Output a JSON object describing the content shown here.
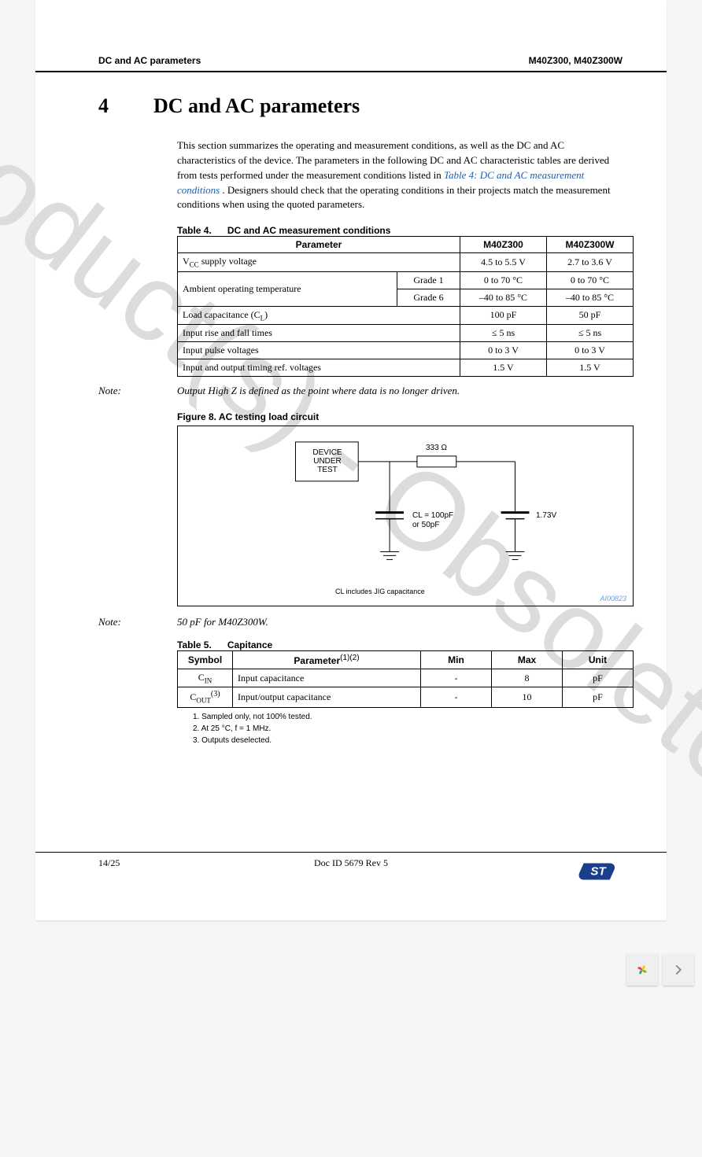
{
  "watermark": "Obsolete Product(s) - Obsolete Product(s)",
  "header": {
    "left": "DC and AC parameters",
    "right": "M40Z300, M40Z300W"
  },
  "section": {
    "number": "4",
    "title": "DC and AC parameters"
  },
  "intro": {
    "p1a": "This section summarizes the operating and measurement conditions, as well as the DC and AC characteristics of the device. The parameters in the following DC and AC characteristic tables are derived from tests performed under the measurement conditions listed in ",
    "link1": "Table 4: DC and AC measurement conditions",
    "p1b": ". Designers should check that the operating conditions in their projects match the measurement conditions when using the quoted parameters."
  },
  "table4": {
    "caption_label": "Table 4.",
    "caption_title": "DC and AC measurement conditions",
    "head": {
      "param": "Parameter",
      "c1": "M40Z300",
      "c2": "M40Z300W"
    },
    "rows": [
      {
        "param_html": "V<sub>CC</sub>  supply voltage",
        "c1": "4.5 to 5.5 V",
        "c2": "2.7 to 3.6 V"
      },
      {
        "param": "Ambient operating temperature",
        "grades": [
          {
            "g": "Grade 1",
            "c1": "0 to 70 °C",
            "c2": "0 to 70 °C"
          },
          {
            "g": "Grade 6",
            "c1": "–40 to 85 °C",
            "c2": "–40 to 85 °C"
          }
        ]
      },
      {
        "param_html": "Load capacitance (C<sub>L</sub>)",
        "c1": "100 pF",
        "c2": "50 pF"
      },
      {
        "param": "Input rise and fall times",
        "c1": "≤ 5 ns",
        "c2": "≤ 5 ns"
      },
      {
        "param": "Input pulse voltages",
        "c1": "0 to 3 V",
        "c2": "0 to 3 V"
      },
      {
        "param": "Input and output timing ref. voltages",
        "c1": "1.5 V",
        "c2": "1.5 V"
      }
    ]
  },
  "note1": {
    "label": "Note:",
    "text": "Output High Z is defined as the point where data is no longer driven."
  },
  "figure8": {
    "caption": "Figure 8.      AC testing load circuit",
    "device_top": "DEVICE",
    "device_bot1": "UNDER",
    "device_bot2": "TEST",
    "r_label": "333 Ω",
    "cap_label1": "CL = 100pF",
    "cap_label2": "or 50pF",
    "v_label": "1.73V",
    "foot": "CL includes JIG capacitance",
    "code": "AI00823"
  },
  "note2": {
    "label": "Note:",
    "text": "50 pF for M40Z300W."
  },
  "table5": {
    "caption_label": "Table 5.",
    "caption_title": "Capitance",
    "footnote_sup": "(1)(2)",
    "head": {
      "sym": "Symbol",
      "param": "Parameter",
      "min": "Min",
      "max": "Max",
      "unit": "Unit"
    },
    "rows": [
      {
        "sym_html": "C<sub>IN</sub>",
        "param": "Input capacitance",
        "min": "-",
        "max": "8",
        "unit": "pF"
      },
      {
        "sym_html": "C<sub>OUT</sub><sup>(3)</sup>",
        "param": "Input/output capacitance",
        "min": "-",
        "max": "10",
        "unit": "pF"
      }
    ],
    "footnotes": [
      "1.    Sampled only, not 100% tested.",
      "2.    At 25 °C, f = 1 MHz.",
      "3.    Outputs deselected."
    ]
  },
  "footer": {
    "page": "14/25",
    "doc": "Doc ID 5679 Rev 5"
  },
  "logo_colors": {
    "blue": "#1a3e8c",
    "white": "#ffffff"
  },
  "nav_icon_colors": {
    "petal1": "#f5c400",
    "petal2": "#7cb518",
    "petal3": "#2a9d8f",
    "petal4": "#e63946",
    "chevron": "#888"
  }
}
